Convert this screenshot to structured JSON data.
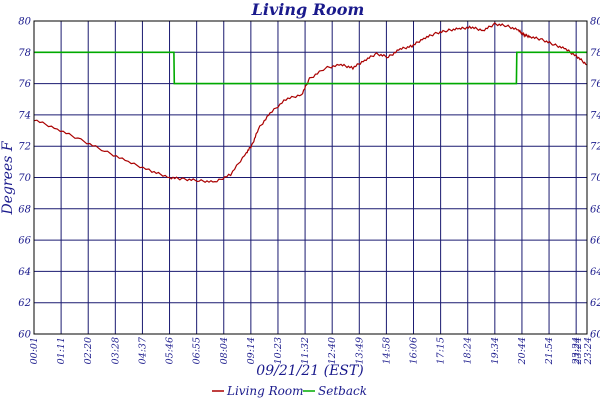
{
  "chart_data": {
    "type": "line",
    "title": "Living Room",
    "xlabel": "09/21/21 (EST)",
    "ylabel": "Degrees F",
    "ylim": [
      60,
      80
    ],
    "yticks": [
      60,
      62,
      64,
      66,
      68,
      70,
      72,
      74,
      76,
      78,
      80
    ],
    "xlim_minutes": [
      1,
      1404
    ],
    "x_tick_labels": [
      "00:01",
      "01:11",
      "02:20",
      "03:28",
      "04:37",
      "05:46",
      "06:55",
      "08:04",
      "09:14",
      "10:23",
      "11:32",
      "12:40",
      "13:49",
      "14:58",
      "16:06",
      "17:15",
      "18:24",
      "19:34",
      "20:44",
      "21:54",
      "23:24",
      "23:24"
    ],
    "grid": true,
    "legend_position": "bottom",
    "series": [
      {
        "name": "Living Room",
        "color": "#aa0000",
        "x_minutes": [
          1,
          60,
          120,
          180,
          240,
          300,
          345,
          380,
          420,
          460,
          500,
          540,
          555,
          570,
          600,
          640,
          680,
          700,
          740,
          780,
          810,
          840,
          870,
          900,
          930,
          960,
          990,
          1020,
          1050,
          1080,
          1110,
          1140,
          1170,
          1200,
          1230,
          1245,
          1260,
          1290,
          1320,
          1350,
          1380,
          1404
        ],
        "values": [
          73.7,
          73.1,
          72.4,
          71.7,
          71.0,
          70.4,
          70.0,
          69.9,
          69.8,
          69.7,
          70.2,
          71.6,
          72.1,
          73.1,
          74.1,
          75.0,
          75.3,
          76.3,
          77.0,
          77.2,
          77.0,
          77.5,
          77.9,
          77.7,
          78.2,
          78.4,
          78.9,
          79.2,
          79.4,
          79.5,
          79.6,
          79.4,
          79.8,
          79.7,
          79.4,
          79.1,
          79.0,
          78.8,
          78.5,
          78.2,
          77.7,
          77.2
        ]
      },
      {
        "name": "Setback",
        "color": "#00aa00",
        "x_minutes": [
          1,
          356,
          357,
          1225,
          1226,
          1404
        ],
        "values": [
          78,
          78,
          76,
          76,
          78,
          78
        ]
      }
    ]
  }
}
